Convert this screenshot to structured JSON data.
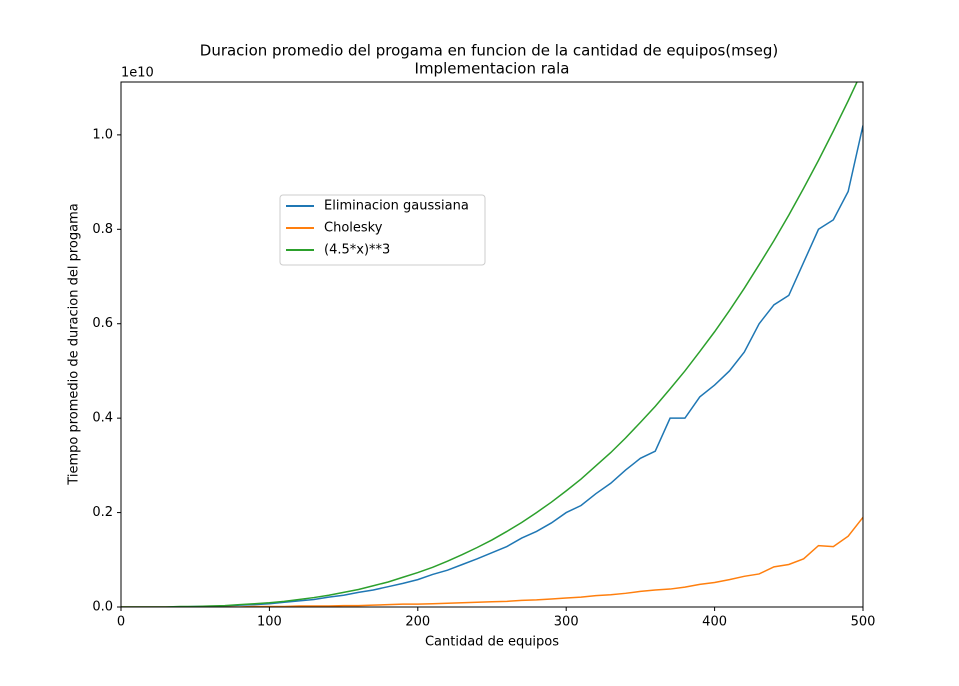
{
  "chart_data": {
    "type": "line",
    "title": "Duracion promedio del progama en funcion de la cantidad de equipos(mseg)",
    "subtitle": "Implementacion rala",
    "x_label": "Cantidad de equipos",
    "y_label": "Tiempo promedio de duracion del progama",
    "y_offset_label": "1e10",
    "x": [
      0,
      10,
      20,
      30,
      40,
      50,
      60,
      70,
      80,
      90,
      100,
      110,
      120,
      130,
      140,
      150,
      160,
      170,
      180,
      190,
      200,
      210,
      220,
      230,
      240,
      250,
      260,
      270,
      280,
      290,
      300,
      310,
      320,
      330,
      340,
      350,
      360,
      370,
      380,
      390,
      400,
      410,
      420,
      430,
      440,
      450,
      460,
      470,
      480,
      490,
      500
    ],
    "series": [
      {
        "name": "Eliminacion gaussiana",
        "color": "#1f77b4",
        "values": [
          0,
          0,
          0,
          0,
          0,
          0.001,
          0.001,
          0.002,
          0.004,
          0.005,
          0.007,
          0.01,
          0.013,
          0.016,
          0.021,
          0.025,
          0.031,
          0.036,
          0.043,
          0.05,
          0.058,
          0.069,
          0.078,
          0.09,
          0.102,
          0.115,
          0.128,
          0.146,
          0.16,
          0.178,
          0.2,
          0.215,
          0.24,
          0.262,
          0.29,
          0.315,
          0.33,
          0.4,
          0.4,
          0.445,
          0.47,
          0.5,
          0.54,
          0.6,
          0.64,
          0.66,
          0.73,
          0.8,
          0.82,
          0.88,
          1.02
        ]
      },
      {
        "name": "Cholesky",
        "color": "#ff7f0e",
        "values": [
          0,
          0,
          0,
          0,
          0,
          0,
          0,
          0,
          0,
          0.001,
          0.001,
          0.001,
          0.002,
          0.002,
          0.002,
          0.003,
          0.003,
          0.004,
          0.005,
          0.006,
          0.006,
          0.007,
          0.008,
          0.009,
          0.01,
          0.011,
          0.012,
          0.014,
          0.015,
          0.017,
          0.019,
          0.021,
          0.024,
          0.026,
          0.029,
          0.033,
          0.036,
          0.038,
          0.042,
          0.048,
          0.052,
          0.058,
          0.065,
          0.07,
          0.085,
          0.09,
          0.102,
          0.13,
          0.128,
          0.15,
          0.19
        ]
      },
      {
        "name": "(4.5*x)**3",
        "color": "#2ca02c",
        "values": [
          0,
          0,
          0,
          0,
          0.001,
          0.001,
          0.002,
          0.003,
          0.005,
          0.007,
          0.009,
          0.012,
          0.016,
          0.02,
          0.025,
          0.031,
          0.037,
          0.045,
          0.053,
          0.063,
          0.073,
          0.084,
          0.097,
          0.111,
          0.126,
          0.142,
          0.16,
          0.179,
          0.2,
          0.222,
          0.246,
          0.271,
          0.299,
          0.327,
          0.358,
          0.391,
          0.425,
          0.462,
          0.5,
          0.541,
          0.583,
          0.628,
          0.675,
          0.725,
          0.776,
          0.83,
          0.887,
          0.946,
          1.008,
          1.072,
          1.139
        ]
      }
    ],
    "xlim": [
      0,
      500
    ],
    "xticks": [
      0,
      100,
      200,
      300,
      400,
      500
    ],
    "ylim": [
      0,
      1.112
    ],
    "yticks": [
      {
        "value": 0,
        "label": "0.0"
      },
      0.2,
      0.4,
      0.6,
      0.8,
      {
        "value": 1,
        "label": "1.0"
      }
    ],
    "legend": "upper left"
  }
}
